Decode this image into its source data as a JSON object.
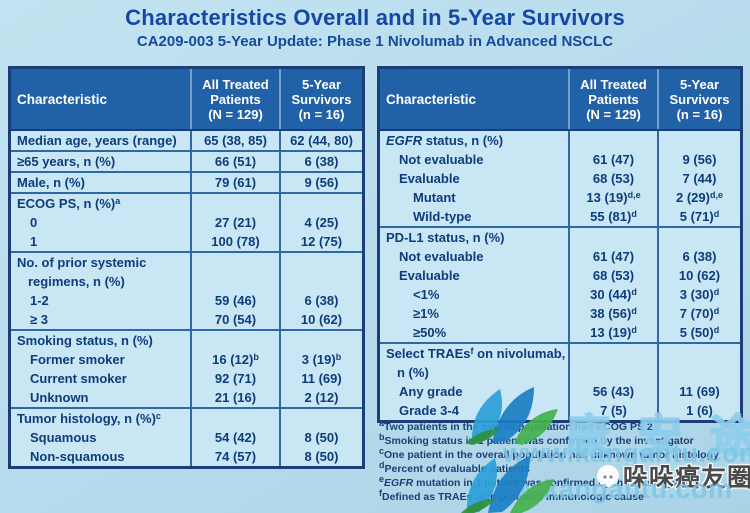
{
  "slide": {
    "title": "Characteristics Overall and in 5-Year Survivors",
    "subtitle": "CA209-003 5-Year Update: Phase 1 Nivolumab in Advanced NSCLC"
  },
  "colors": {
    "background": "#b6dbec",
    "table_header_bg": "#2161a8",
    "table_body_bg": "#c8e6f3",
    "table_border": "#1c3e78",
    "text_navy": "#0e3c7c",
    "title_blue": "#1547a5",
    "watermark_blue": "#7dc6e4"
  },
  "tables": {
    "left": {
      "headers": [
        "Characteristic",
        [
          "All Treated",
          "Patients",
          "(N = 129)"
        ],
        [
          "5-Year",
          "Survivors",
          "(n = 16)"
        ]
      ],
      "rows": [
        {
          "label": "Median age, years (range)",
          "indent": 0,
          "sep": false,
          "v1": "65 (38, 85)",
          "v2": "62 (44, 80)"
        },
        {
          "label": "≥65 years, n (%)",
          "indent": 0,
          "sep": true,
          "v1": "66 (51)",
          "v2": "6 (38)"
        },
        {
          "label": "Male, n (%)",
          "indent": 0,
          "sep": true,
          "v1": "79 (61)",
          "v2": "9 (56)"
        },
        {
          "label": "ECOG PS, n (%)^a^",
          "indent": 0,
          "sep": true,
          "v1": "",
          "v2": ""
        },
        {
          "label": "0",
          "indent": 1,
          "sep": false,
          "v1": "27 (21)",
          "v2": "4 (25)"
        },
        {
          "label": "1",
          "indent": 1,
          "sep": false,
          "v1": "100 (78)",
          "v2": "12 (75)"
        },
        {
          "label": "No. of prior systemic regimens, n (%)",
          "indent": 0,
          "hang": true,
          "sep": true,
          "v1": "",
          "v2": ""
        },
        {
          "label": "1-2",
          "indent": 1,
          "sep": false,
          "v1": "59 (46)",
          "v2": "6 (38)"
        },
        {
          "label": "≥ 3",
          "indent": 1,
          "sep": false,
          "v1": "70 (54)",
          "v2": "10 (62)"
        },
        {
          "label": "Smoking status, n (%)",
          "indent": 0,
          "sep": true,
          "v1": "",
          "v2": ""
        },
        {
          "label": "Former smoker",
          "indent": 1,
          "sep": false,
          "v1": "16 (12)^b^",
          "v2": "3 (19)^b^"
        },
        {
          "label": "Current smoker",
          "indent": 1,
          "sep": false,
          "v1": "92 (71)",
          "v2": "11 (69)"
        },
        {
          "label": "Unknown",
          "indent": 1,
          "sep": false,
          "v1": "21 (16)",
          "v2": "2 (12)"
        },
        {
          "label": "Tumor histology, n (%)^c^",
          "indent": 0,
          "sep": true,
          "v1": "",
          "v2": ""
        },
        {
          "label": "Squamous",
          "indent": 1,
          "sep": false,
          "v1": "54 (42)",
          "v2": "8 (50)"
        },
        {
          "label": "Non-squamous",
          "indent": 1,
          "sep": false,
          "v1": "74 (57)",
          "v2": "8 (50)"
        }
      ]
    },
    "right": {
      "headers": [
        "Characteristic",
        [
          "All Treated",
          "Patients",
          "(N = 129)"
        ],
        [
          "5-Year",
          "Survivors",
          "(n = 16)"
        ]
      ],
      "rows": [
        {
          "label": "~EGFR~ status, n (%)",
          "indent": 0,
          "sep": false,
          "v1": "",
          "v2": ""
        },
        {
          "label": "Not evaluable",
          "indent": 1,
          "sep": false,
          "v1": "61 (47)",
          "v2": "9 (56)"
        },
        {
          "label": "Evaluable",
          "indent": 1,
          "sep": false,
          "v1": "68 (53)",
          "v2": "7 (44)"
        },
        {
          "label": "Mutant",
          "indent": 2,
          "sep": false,
          "v1": "13 (19)^d,e^",
          "v2": "2 (29)^d,e^"
        },
        {
          "label": "Wild-type",
          "indent": 2,
          "sep": false,
          "v1": "55 (81)^d^",
          "v2": "5 (71)^d^"
        },
        {
          "label": "PD-L1 status, n (%)",
          "indent": 0,
          "sep": true,
          "v1": "",
          "v2": ""
        },
        {
          "label": "Not evaluable",
          "indent": 1,
          "sep": false,
          "v1": "61 (47)",
          "v2": "6 (38)"
        },
        {
          "label": "Evaluable",
          "indent": 1,
          "sep": false,
          "v1": "68 (53)",
          "v2": "10 (62)"
        },
        {
          "label": "<1%",
          "indent": 2,
          "sep": false,
          "v1": "30 (44)^d^",
          "v2": "3 (30)^d^"
        },
        {
          "label": "≥1%",
          "indent": 2,
          "sep": false,
          "v1": "38 (56)^d^",
          "v2": "7 (70)^d^"
        },
        {
          "label": "≥50%",
          "indent": 2,
          "sep": false,
          "v1": "13 (19)^d^",
          "v2": "5 (50)^d^"
        },
        {
          "label": "Select TRAEs^f^ on nivolumab, n (%)",
          "indent": 0,
          "hang": true,
          "sep": true,
          "v1": "",
          "v2": ""
        },
        {
          "label": "Any grade",
          "indent": 1,
          "sep": false,
          "v1": "56 (43)",
          "v2": "11 (69)"
        },
        {
          "label": "Grade 3-4",
          "indent": 1,
          "sep": false,
          "v1": "7 (5)",
          "v2": "1 (6)"
        }
      ]
    }
  },
  "footnotes": [
    "^a^Two patients in the overall population had ECOG PS 2",
    "^b^Smoking status in 1 patient was confirmed by the investigator",
    "^c^One patient in the overall population had unknown tumor histology",
    "^d^Percent of evaluable patients",
    "^e^~EGFR~ mutation in 1 patient was confirmed by the investigator",
    "^f^Defined as TRAEs with potential immunologic cause"
  ],
  "watermark": {
    "site_url_1": "www.kangantu.com",
    "site_url_2": "www.kangantu.com",
    "brand_name": "康安途",
    "badge_text": "哚哚癌友圈"
  }
}
